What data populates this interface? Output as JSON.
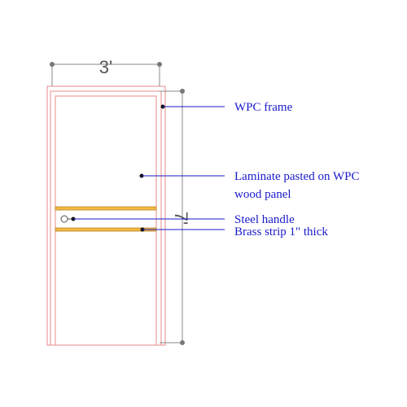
{
  "dimensions": {
    "width": "3'",
    "height": "7'"
  },
  "callouts": {
    "frame": "WPC frame",
    "panel_line1": "Laminate pasted on WPC",
    "panel_line2": "wood panel",
    "handle": "Steel handle",
    "strip": "Brass strip 1\" thick"
  },
  "colors": {
    "frame_outline": "#e88a8a",
    "brass_strip": "#f4b942",
    "dimension_line": "#888888",
    "callout": "#1a1acc"
  }
}
